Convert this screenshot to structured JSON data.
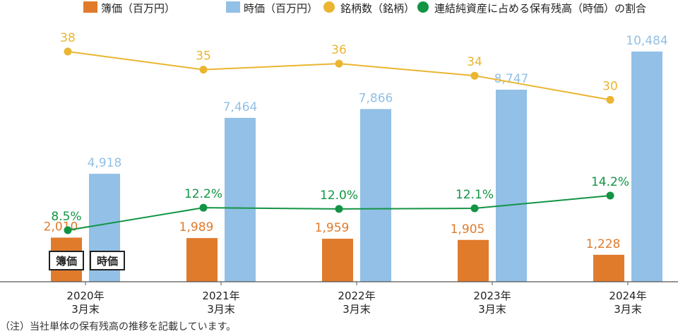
{
  "chart_data": {
    "type": "bar",
    "categories": [
      [
        "2020年",
        "3月末"
      ],
      [
        "2021年",
        "3月末"
      ],
      [
        "2022年",
        "3月末"
      ],
      [
        "2023年",
        "3月末"
      ],
      [
        "2024年",
        "3月末"
      ]
    ],
    "series": [
      {
        "name": "簿価（百万円）",
        "kind": "bar",
        "axis": "bar",
        "color": "#e07b2c",
        "values": [
          2010,
          1989,
          1959,
          1905,
          1228
        ],
        "labels": [
          "2,010",
          "1,989",
          "1,959",
          "1,905",
          "1,228"
        ]
      },
      {
        "name": "時価（百万円）",
        "kind": "bar",
        "axis": "bar",
        "color": "#92c0e6",
        "values": [
          4918,
          7464,
          7866,
          8747,
          10484
        ],
        "labels": [
          "4,918",
          "7,464",
          "7,866",
          "8,747",
          "10,484"
        ]
      },
      {
        "name": "銘柄数（銘柄）",
        "kind": "line",
        "axis": "count",
        "color": "#eab530",
        "values": [
          38,
          35,
          36,
          34,
          30
        ],
        "labels": [
          "38",
          "35",
          "36",
          "34",
          "30"
        ]
      },
      {
        "name": "連結純資産に占める保有残高（時価）の割合",
        "kind": "line",
        "axis": "pct",
        "color": "#129444",
        "values": [
          8.5,
          12.2,
          12.0,
          12.1,
          14.2
        ],
        "labels": [
          "8.5%",
          "12.2%",
          "12.0%",
          "12.1%",
          "14.2%"
        ]
      }
    ],
    "bar_tags": [
      "簿価",
      "時価"
    ],
    "legend_position": "top",
    "grid": false
  },
  "footnote": "（注）当社単体の保有残高の推移を記載しています。"
}
